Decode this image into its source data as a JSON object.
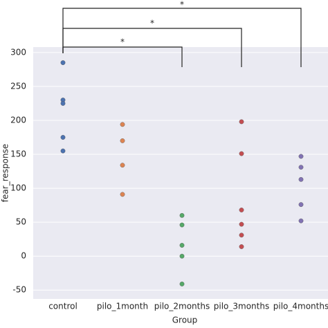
{
  "chart_data": {
    "type": "strip",
    "x_label": "Group",
    "y_label": "fear_response",
    "categories": [
      "control",
      "pilo_1month",
      "pilo_2months",
      "pilo_3months",
      "pilo_4months"
    ],
    "values": [
      [
        285,
        230,
        225,
        175,
        155
      ],
      [
        194,
        170,
        134,
        91
      ],
      [
        60,
        46,
        16,
        0,
        -41
      ],
      [
        198,
        151,
        68,
        47,
        31,
        14
      ],
      [
        147,
        131,
        113,
        76,
        52
      ]
    ],
    "colors": [
      "#4c72b0",
      "#dd8452",
      "#55a868",
      "#c44e52",
      "#8172b3"
    ],
    "ylim": [
      -63,
      308
    ],
    "yticks": [
      -50,
      0,
      50,
      100,
      150,
      200,
      250,
      300
    ],
    "grid": true,
    "annotations": [
      "*",
      "*",
      "*"
    ]
  }
}
